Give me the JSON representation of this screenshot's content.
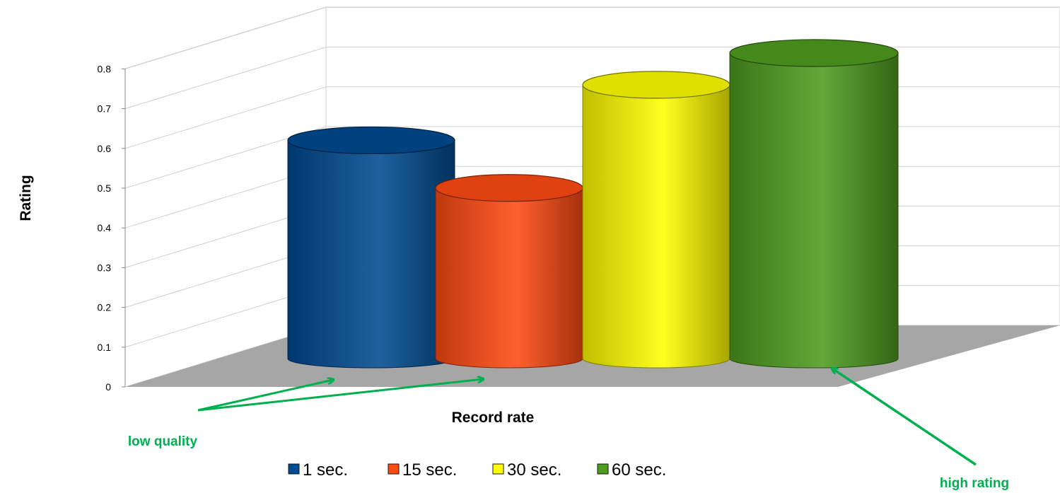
{
  "chart_data": {
    "type": "bar",
    "style": "3d-cylinder",
    "title": "",
    "xlabel": "Record rate",
    "ylabel": "Rating",
    "ylim": [
      0,
      0.8
    ],
    "yticks": [
      "0",
      "0.1",
      "0.2",
      "0.3",
      "0.4",
      "0.5",
      "0.6",
      "0.7",
      "0.8"
    ],
    "grid": true,
    "legend": "bottom",
    "series": [
      {
        "name": "1 sec.",
        "value": 0.55,
        "color": "#004b91"
      },
      {
        "name": "15 sec.",
        "value": 0.43,
        "color": "#ff4a12"
      },
      {
        "name": "30 sec.",
        "value": 0.69,
        "color": "#ffff00"
      },
      {
        "name": "60 sec.",
        "value": 0.77,
        "color": "#4e9c1e"
      }
    ],
    "annotations": [
      {
        "text": "low quality",
        "color": "#00b050"
      },
      {
        "text": "high rating",
        "color": "#00b050"
      }
    ]
  }
}
